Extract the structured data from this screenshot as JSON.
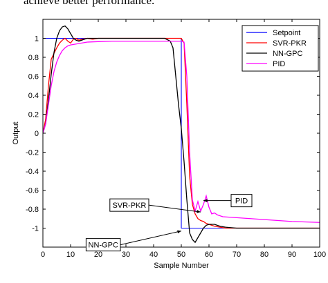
{
  "header_text": "achieve better performance.",
  "chart_data": {
    "type": "line",
    "title": "",
    "xlabel": "Sample Number",
    "ylabel": "Output",
    "xlim": [
      0,
      100
    ],
    "ylim": [
      -1.2,
      1.2
    ],
    "xticks": [
      0,
      10,
      20,
      30,
      40,
      50,
      60,
      70,
      80,
      90,
      100
    ],
    "yticks": [
      -1,
      -0.8,
      -0.6,
      -0.4,
      -0.2,
      0,
      0.2,
      0.4,
      0.6,
      0.8,
      1
    ],
    "legend_position": "top-right",
    "grid": false,
    "series": [
      {
        "name": "Setpoint",
        "color": "#0000ff",
        "x": [
          0,
          50,
          50,
          100
        ],
        "y": [
          1,
          1,
          -1,
          -1
        ]
      },
      {
        "name": "SVR-PKR",
        "color": "#ff0000",
        "x": [
          0,
          1,
          2,
          3,
          4,
          5,
          6,
          7,
          8,
          9,
          10,
          11,
          12,
          13,
          14,
          16,
          18,
          20,
          24,
          30,
          40,
          50,
          51,
          52,
          53,
          54,
          55,
          56,
          57,
          58,
          59,
          60,
          62,
          64,
          66,
          70,
          80,
          90,
          100
        ],
        "y": [
          0,
          0.15,
          0.5,
          0.78,
          0.84,
          0.9,
          0.95,
          0.98,
          1.0,
          0.97,
          0.95,
          0.99,
          1.0,
          0.98,
          0.99,
          1.0,
          0.99,
          1.0,
          1.0,
          1.0,
          1.0,
          1.0,
          0.95,
          0.3,
          -0.45,
          -0.75,
          -0.85,
          -0.9,
          -0.92,
          -0.93,
          -0.95,
          -0.96,
          -0.98,
          -0.99,
          -1.0,
          -1.0,
          -1.0,
          -1.0,
          -1.0
        ]
      },
      {
        "name": "NN-GPC",
        "color": "#000000",
        "x": [
          0,
          1,
          2,
          3,
          4,
          5,
          6,
          7,
          8,
          9,
          10,
          11,
          12,
          13,
          14,
          15,
          16,
          18,
          20,
          24,
          30,
          40,
          44,
          46,
          47,
          48,
          49,
          50,
          51,
          52,
          53,
          54,
          55,
          56,
          57,
          58,
          59,
          60,
          62,
          64,
          66,
          70,
          80,
          90,
          100
        ],
        "y": [
          0,
          0.1,
          0.35,
          0.62,
          0.85,
          1.0,
          1.08,
          1.12,
          1.13,
          1.1,
          1.05,
          1.0,
          0.98,
          0.97,
          0.98,
          0.99,
          1.0,
          1.0,
          1.0,
          1.0,
          1.0,
          1.0,
          1.0,
          0.97,
          0.9,
          0.6,
          0.3,
          0.05,
          -0.3,
          -0.7,
          -1.05,
          -1.12,
          -1.15,
          -1.1,
          -1.05,
          -1.0,
          -0.97,
          -0.96,
          -0.96,
          -0.98,
          -0.99,
          -1.0,
          -1.0,
          -1.0,
          -1.0
        ]
      },
      {
        "name": "PID",
        "color": "#ff00ff",
        "x": [
          0,
          1,
          2,
          3,
          4,
          5,
          6,
          7,
          8,
          9,
          10,
          12,
          14,
          16,
          20,
          25,
          30,
          40,
          50,
          51,
          52,
          53,
          54,
          55,
          56,
          57,
          58,
          59,
          60,
          61,
          62,
          63,
          65,
          70,
          80,
          90,
          100
        ],
        "y": [
          0,
          0.1,
          0.3,
          0.5,
          0.65,
          0.75,
          0.82,
          0.87,
          0.9,
          0.92,
          0.93,
          0.94,
          0.95,
          0.96,
          0.965,
          0.97,
          0.97,
          0.97,
          0.97,
          0.96,
          0.6,
          -0.2,
          -0.7,
          -0.82,
          -0.72,
          -0.82,
          -0.75,
          -0.66,
          -0.78,
          -0.85,
          -0.84,
          -0.86,
          -0.88,
          -0.89,
          -0.91,
          -0.93,
          -0.94
        ]
      }
    ],
    "annotations": [
      {
        "text": "PID",
        "x": 58,
        "y": -0.71
      },
      {
        "text": "SVR-PKR",
        "x": 57,
        "y": -0.83
      },
      {
        "text": "NN-GPC",
        "x": 50,
        "y": -1.03
      }
    ]
  }
}
